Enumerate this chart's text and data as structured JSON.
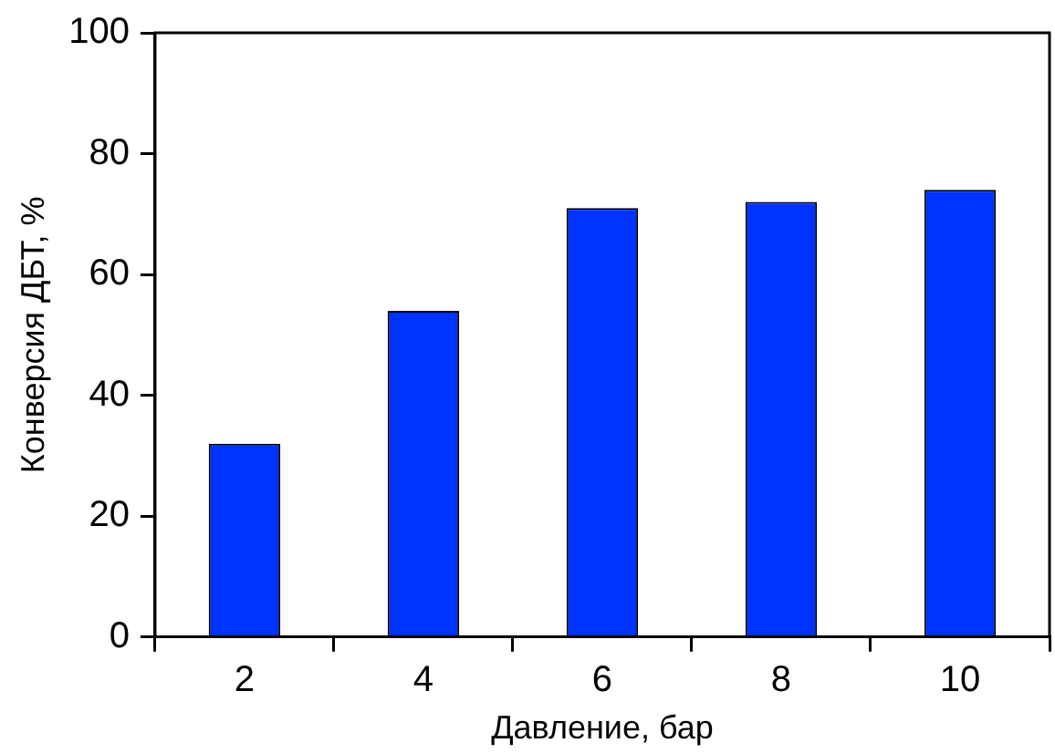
{
  "chart_data": {
    "type": "bar",
    "xlabel": "Давление, бар",
    "ylabel": "Конверсия ДБТ, %",
    "categories": [
      "2",
      "4",
      "6",
      "8",
      "10"
    ],
    "values": [
      32,
      54,
      71,
      72,
      74
    ],
    "color": "#0033ff",
    "ylim": [
      0,
      100
    ],
    "yticks": [
      0,
      20,
      40,
      60,
      80,
      100
    ],
    "grid": false,
    "legend": false
  }
}
